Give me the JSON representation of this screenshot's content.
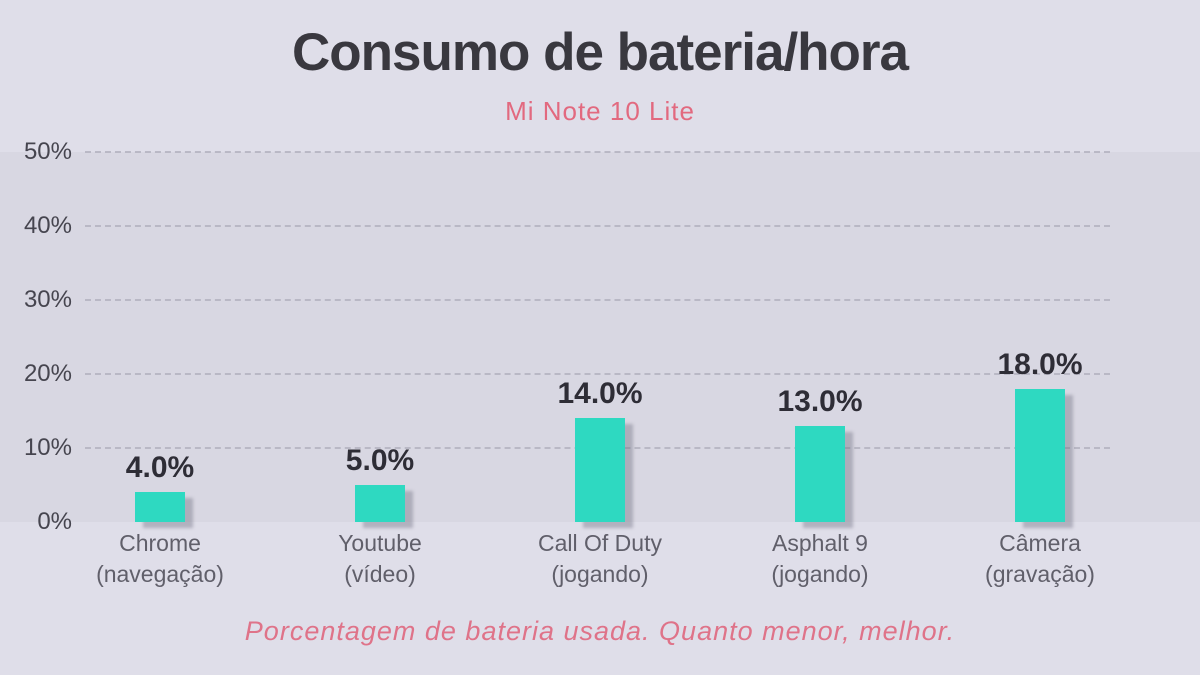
{
  "page": {
    "title": "Consumo de bateria/hora",
    "subtitle": "Mi Note 10 Lite",
    "caption": "Porcentagem de bateria usada. Quanto menor, melhor."
  },
  "chart_data": {
    "type": "bar",
    "title": "Consumo de bateria/hora",
    "subtitle": "Mi Note 10 Lite",
    "caption": "Porcentagem de bateria usada. Quanto menor, melhor.",
    "categories": [
      "Chrome (navegação)",
      "Youtube (vídeo)",
      "Call Of Duty (jogando)",
      "Asphalt 9 (jogando)",
      "Câmera (gravação)"
    ],
    "category_lines": [
      [
        "Chrome",
        "(navegação)"
      ],
      [
        "Youtube",
        "(vídeo)"
      ],
      [
        "Call Of Duty",
        "(jogando)"
      ],
      [
        "Asphalt 9",
        "(jogando)"
      ],
      [
        "Câmera",
        "(gravação)"
      ]
    ],
    "values": [
      4.0,
      5.0,
      14.0,
      13.0,
      18.0
    ],
    "value_labels": [
      "4.0%",
      "5.0%",
      "14.0%",
      "13.0%",
      "18.0%"
    ],
    "xlabel": "",
    "ylabel": "",
    "ylim": [
      0,
      50
    ],
    "yticks": [
      "0%",
      "10%",
      "20%",
      "30%",
      "40%",
      "50%"
    ],
    "grid": "horizontal-dashed",
    "legend": "none",
    "colors": {
      "background": "#DFDEE9",
      "plot_band": "#D8D7E2",
      "bar": "#2ED9C1",
      "bar_shadow": "#6E6E80",
      "gridline": "#B4B3C0",
      "title": "#39383F",
      "subtitle": "#E2697F",
      "caption": "#DF7389",
      "axis_tick": "#46454F",
      "category_label": "#605F6A",
      "value_label": "#2E2D36"
    }
  }
}
